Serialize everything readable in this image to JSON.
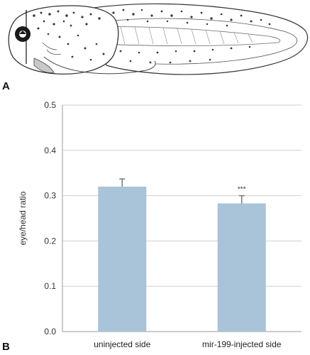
{
  "panels": {
    "a_label": "A",
    "b_label": "B"
  },
  "illustration": {
    "subject": "tadpole-drawing"
  },
  "chart_data": {
    "type": "bar",
    "categories": [
      "uninjected side",
      "mir-199-injected side"
    ],
    "series": [
      {
        "values": [
          0.32,
          0.283
        ],
        "errors": [
          0.017,
          0.017
        ]
      }
    ],
    "annotations": [
      "",
      "***"
    ],
    "title": "",
    "xlabel": "",
    "ylabel": "eye/head ratio",
    "ylim": [
      0,
      0.5
    ],
    "yticks": [
      0.0,
      0.1,
      0.2,
      0.3,
      0.4,
      0.5
    ],
    "ytick_labels": [
      "0.0",
      "0.1",
      "0.2",
      "0.3",
      "0.4",
      "0.5"
    ],
    "grid": true,
    "legend": "none",
    "colors": {
      "bar": "#a9c3d8",
      "error_bar": "#6f7880",
      "grid": "#cfcfcf",
      "axis": "#9a9a9a"
    }
  }
}
